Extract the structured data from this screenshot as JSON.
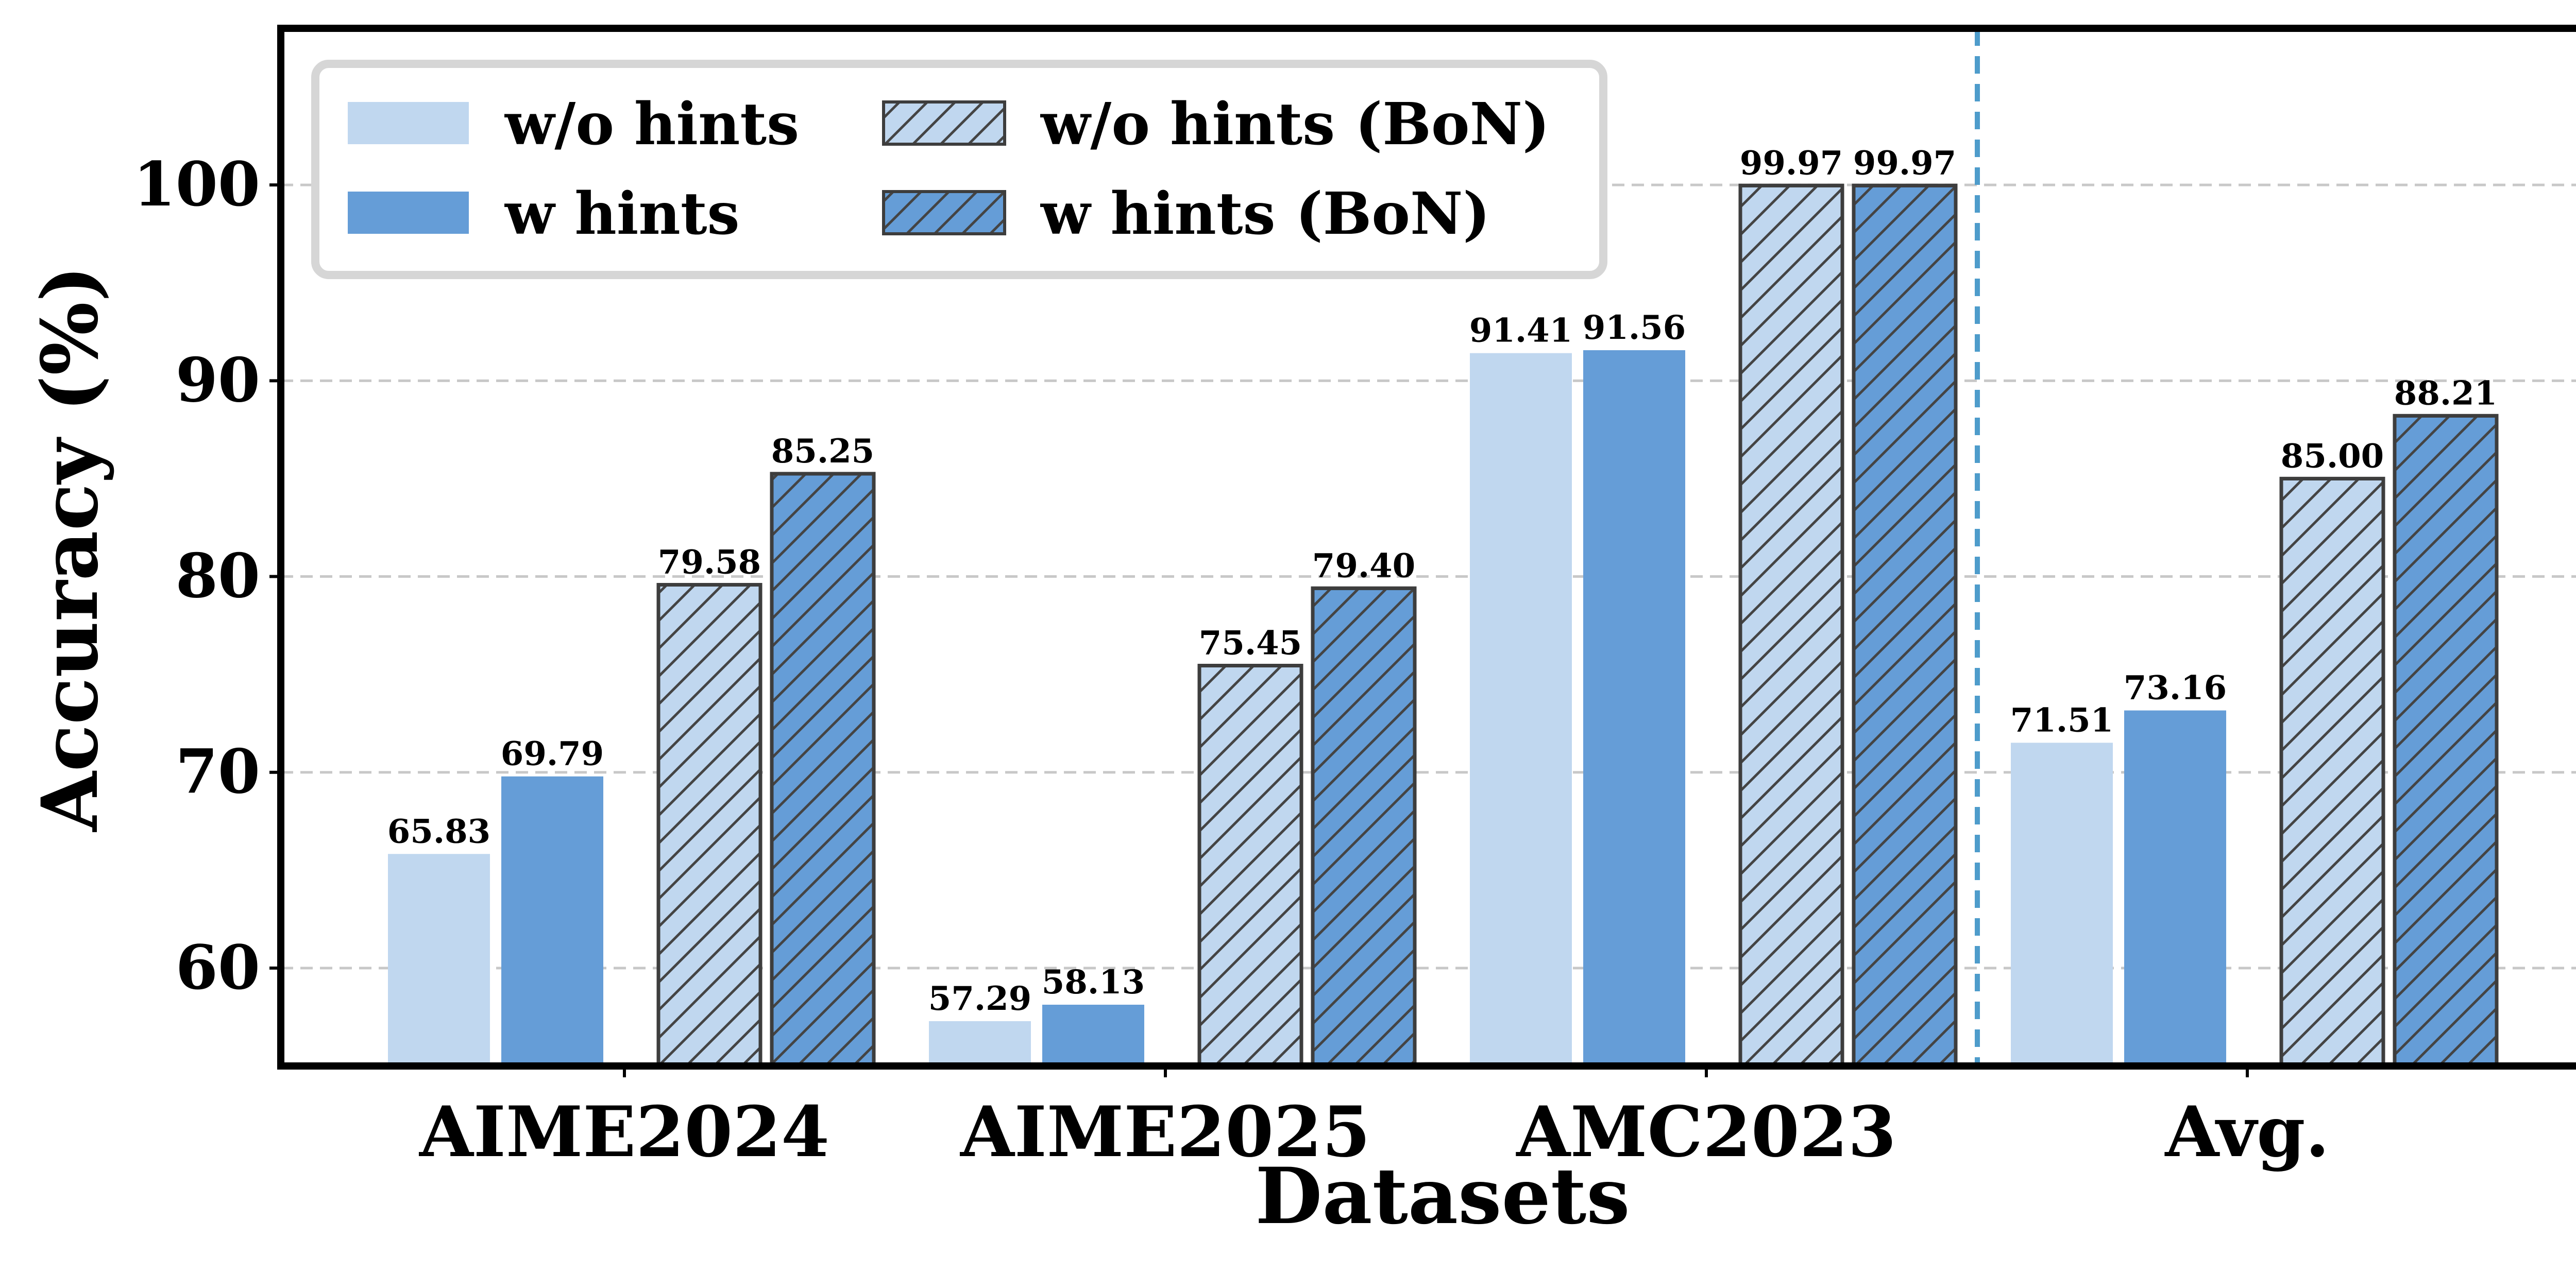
{
  "chart_data": {
    "type": "bar",
    "title": "",
    "xlabel": "Datasets",
    "ylabel": "Accuracy (%)",
    "ylim": [
      55,
      108
    ],
    "yticks": [
      60,
      70,
      80,
      90,
      100
    ],
    "grid": true,
    "legend_position": "top-left",
    "categories": [
      "AIME2024",
      "AIME2025",
      "AMC2023",
      "Avg."
    ],
    "series": [
      {
        "name": "w/o hints",
        "values": [
          65.83,
          57.29,
          91.41,
          71.51
        ],
        "labels": [
          "65.83",
          "57.29",
          "91.41",
          "71.51"
        ],
        "color": "#c0d7ef",
        "hatched": false
      },
      {
        "name": "w hints",
        "values": [
          69.79,
          58.13,
          91.56,
          73.16
        ],
        "labels": [
          "69.79",
          "58.13",
          "91.56",
          "73.16"
        ],
        "color": "#659dd7",
        "hatched": false
      },
      {
        "name": "w/o hints (BoN)",
        "values": [
          79.58,
          75.45,
          99.97,
          85.0
        ],
        "labels": [
          "79.58",
          "75.45",
          "99.97",
          "85.00"
        ],
        "color": "#c0d7ef",
        "hatched": true
      },
      {
        "name": "w hints (BoN)",
        "values": [
          85.25,
          79.4,
          99.97,
          88.21
        ],
        "labels": [
          "85.25",
          "79.40",
          "99.97",
          "88.21"
        ],
        "color": "#659dd7",
        "hatched": true
      }
    ],
    "separator": {
      "after_category": "AMC2023",
      "color": "#4e9ccb",
      "style": "dashed"
    }
  }
}
